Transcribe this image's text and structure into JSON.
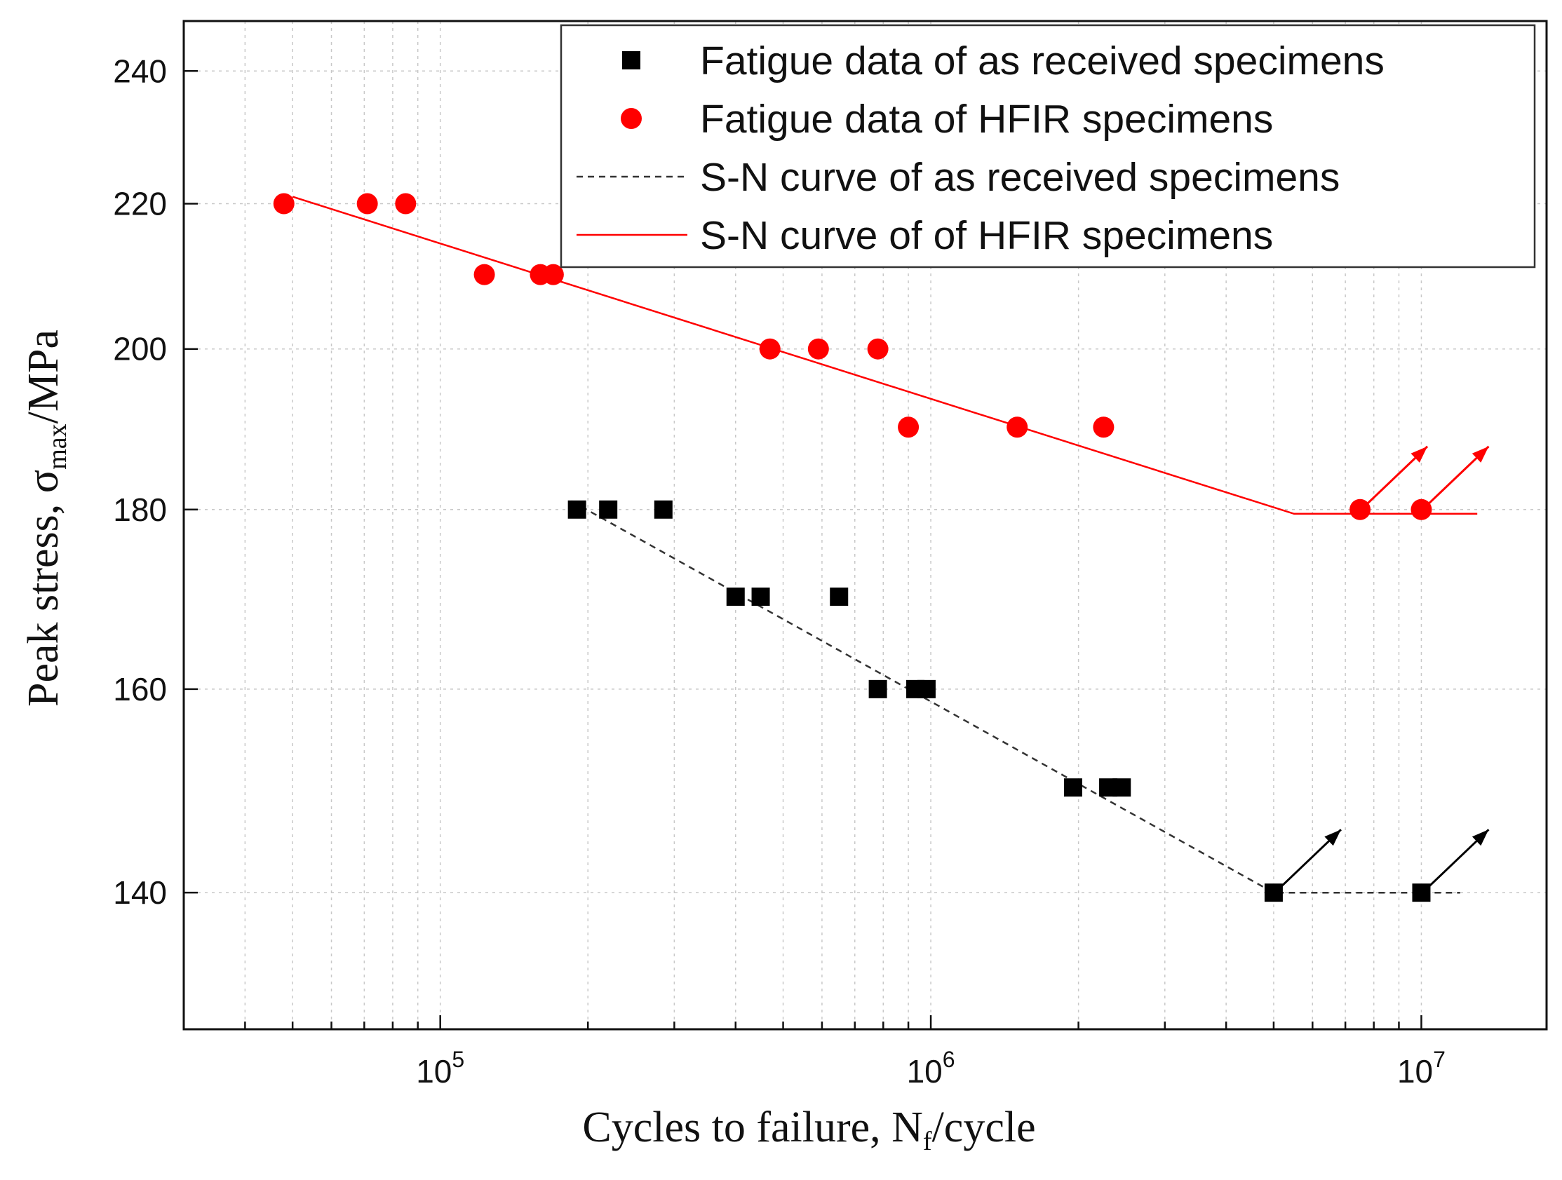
{
  "chart_data": {
    "type": "scatter",
    "x_scale": "log",
    "y_scale": "log",
    "xlabel": {
      "main": "Cycles to failure, N",
      "sub": "f",
      "tail": "/cycle"
    },
    "ylabel": {
      "main": "Peak stress, σ",
      "sub": "max",
      "tail": "/MPa"
    },
    "xlim": [
      30000,
      18000000
    ],
    "ylim": [
      128,
      248
    ],
    "x_ticks": [
      {
        "value": 100000,
        "base": "10",
        "exp": "5"
      },
      {
        "value": 1000000,
        "base": "10",
        "exp": "6"
      },
      {
        "value": 10000000,
        "base": "10",
        "exp": "7"
      }
    ],
    "y_ticks": [
      140,
      160,
      180,
      200,
      220,
      240
    ],
    "grid": true,
    "legend_position": "top-right",
    "series": [
      {
        "name": "Fatigue data of as received specimens",
        "kind": "points",
        "marker": "square",
        "color": "#000000",
        "x": [
          190000,
          220000,
          285000,
          400000,
          450000,
          650000,
          780000,
          930000,
          980000,
          1950000,
          2300000,
          2450000,
          5000000,
          10000000
        ],
        "y": [
          180,
          180,
          180,
          170,
          170,
          170,
          160,
          160,
          160,
          150,
          150,
          150,
          140,
          140
        ],
        "runouts": [
          {
            "x": 5000000,
            "y": 140
          },
          {
            "x": 10000000,
            "y": 140
          }
        ]
      },
      {
        "name": "Fatigue data of HFIR specimens",
        "kind": "points",
        "marker": "circle",
        "color": "#ff0000",
        "x": [
          48000,
          71000,
          85000,
          123000,
          160000,
          170000,
          470000,
          590000,
          780000,
          900000,
          1500000,
          2250000,
          7500000,
          10000000
        ],
        "y": [
          220,
          220,
          220,
          210,
          210,
          210,
          200,
          200,
          200,
          190,
          190,
          190,
          180,
          180
        ],
        "runouts": [
          {
            "x": 7500000,
            "y": 180
          },
          {
            "x": 10000000,
            "y": 180
          }
        ]
      },
      {
        "name": "S-N curve of as received specimens",
        "kind": "line",
        "dash": "dashed",
        "color": "#333333",
        "x": [
          185000,
          5000000,
          12000000
        ],
        "y": [
          181,
          140,
          140
        ]
      },
      {
        "name": "S-N curve of of HFIR specimens",
        "kind": "line",
        "dash": "solid",
        "color": "#ff0000",
        "x": [
          50000,
          5500000,
          13000000
        ],
        "y": [
          221,
          179.5,
          179.5
        ]
      }
    ]
  }
}
